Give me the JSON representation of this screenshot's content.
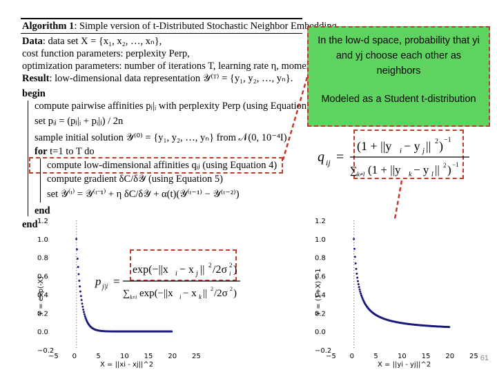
{
  "algorithm": {
    "header_bold": "Algorithm 1",
    "header_rest": ": Simple version of t-Distributed Stochastic Neighbor Embedding.",
    "lines": [
      {
        "bold": "Data",
        "text": ": data set X = {x₁, x₂, …, xₙ},"
      },
      {
        "bold": "",
        "text": "cost function parameters: perplexity Perp,"
      },
      {
        "bold": "",
        "text": "optimization parameters: number of iterations T, learning rate η, momentum α(t)."
      },
      {
        "bold": "Result",
        "text": ": low-dimensional data representation 𝒴⁽ᵀ⁾ = {y₁, y₂, …, yₙ}."
      },
      {
        "bold": "begin",
        "text": ""
      },
      {
        "bold": "",
        "text": "compute pairwise affinities pⱼ|ᵢ with perplexity Perp (using Equation 1)"
      },
      {
        "bold": "",
        "text": "set pᵢⱼ = (pⱼ|ᵢ + pᵢ|ⱼ) / 2n"
      },
      {
        "bold": "",
        "text": "sample initial solution 𝒴⁽⁰⁾ = {y₁, y₂, …, yₙ} from 𝒩(0, 10⁻⁴I)"
      },
      {
        "bold": "for",
        "text": " t=1 to T do"
      },
      {
        "bold": "",
        "text": "compute low-dimensional affinities qᵢⱼ (using Equation 4)"
      },
      {
        "bold": "",
        "text": "compute gradient δC/δ𝒴 (using Equation 5)"
      },
      {
        "bold": "",
        "text": "set 𝒴⁽ᵗ⁾ = 𝒴⁽ᵗ⁻¹⁾ + η δC/δ𝒴 + α(t)(𝒴⁽ᵗ⁻¹⁾ − 𝒴⁽ᵗ⁻²⁾)"
      },
      {
        "bold": "end",
        "text": ""
      },
      {
        "bold": "end",
        "text": ""
      }
    ]
  },
  "callout": {
    "text1": "In the low-d space, probability that yi and yj choose each other as neighbors",
    "text2": "Modeled as a Student t-distribution"
  },
  "formula_q": "qᵢⱼ = (1 + ‖yᵢ − yⱼ‖²)⁻¹ / ∑ₖ≠ₗ (1 + ‖yₖ − yₗ‖²)⁻¹",
  "formula_p": "pⱼ|ᵢ = exp(−‖xᵢ − xⱼ‖² / 2σᵢ²) / ∑ₖ≠ᵢ exp(−‖xᵢ − xₖ‖² / 2σᵢ²)",
  "page_number": "61",
  "colors": {
    "callout_bg": "#5fd35f",
    "dashed_border": "#c0392b",
    "curve": "#1a1a7a"
  },
  "chart_data": [
    {
      "type": "line",
      "function": "exp(-x)",
      "xlabel": "X = ||xi - xj||^2",
      "ylabel": "Y = exp(-X)",
      "xlim": [
        -5,
        25
      ],
      "ylim": [
        -0.2,
        1.2
      ],
      "xticks": [
        "−5",
        "0",
        "5",
        "10",
        "15",
        "20",
        "25"
      ],
      "yticks": [
        "−0.2",
        "0.0",
        "0.2",
        "0.4",
        "0.6",
        "0.8",
        "1.0",
        "1.2"
      ],
      "x": [
        0,
        1,
        2,
        3,
        4,
        5,
        10,
        20
      ],
      "y": [
        1.0,
        0.37,
        0.14,
        0.05,
        0.02,
        0.01,
        0.0,
        0.0
      ]
    },
    {
      "type": "line",
      "function": "(1+X)^-1",
      "xlabel": "X = ||yi - yj||^2",
      "ylabel": "Y = (1+X)^-1",
      "xlim": [
        -5,
        25
      ],
      "ylim": [
        -0.2,
        1.2
      ],
      "xticks": [
        "−5",
        "0",
        "5",
        "10",
        "15",
        "20",
        "25"
      ],
      "yticks": [
        "−0.2",
        "0.0",
        "0.2",
        "0.4",
        "0.6",
        "0.8",
        "1.0",
        "1.2"
      ],
      "x": [
        0,
        1,
        2,
        5,
        10,
        15,
        20
      ],
      "y": [
        1.0,
        0.5,
        0.33,
        0.17,
        0.09,
        0.06,
        0.05
      ]
    }
  ]
}
